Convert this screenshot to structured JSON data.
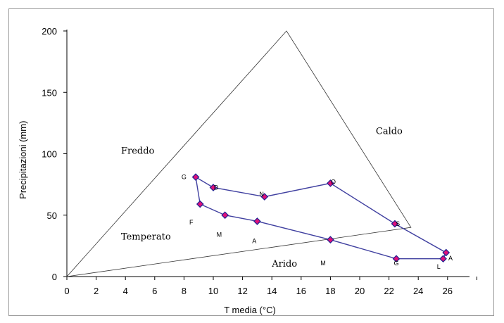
{
  "chart_data": {
    "type": "scatter",
    "xlabel": "T  media (°C)",
    "ylabel": "Precipitazioni (mm)",
    "xlim": [
      0,
      27.5
    ],
    "ylim": [
      0,
      200
    ],
    "xticks": [
      0,
      2,
      4,
      6,
      8,
      10,
      12,
      14,
      16,
      18,
      20,
      22,
      24,
      26
    ],
    "yticks": [
      0,
      50,
      100,
      150,
      200
    ],
    "grid": false,
    "series": [
      {
        "points": [
          {
            "x": 8.8,
            "y": 81,
            "label": "G"
          },
          {
            "x": 9.1,
            "y": 59,
            "label": "F"
          },
          {
            "x": 10.8,
            "y": 50,
            "label": "M"
          },
          {
            "x": 13.0,
            "y": 45,
            "label": "A"
          },
          {
            "x": 18.0,
            "y": 30,
            "label": "M"
          },
          {
            "x": 22.5,
            "y": 14.5,
            "label": "G"
          },
          {
            "x": 25.7,
            "y": 14.5,
            "label": "L"
          },
          {
            "x": 25.9,
            "y": 19.5,
            "label": "A"
          },
          {
            "x": 22.4,
            "y": 43,
            "label": "S"
          },
          {
            "x": 18.0,
            "y": 76,
            "label": "O"
          },
          {
            "x": 13.5,
            "y": 65,
            "label": "N"
          },
          {
            "x": 10.0,
            "y": 72.5,
            "label": "D"
          }
        ],
        "closed": true
      }
    ],
    "envelope": {
      "triangle": [
        {
          "x": 0,
          "y": 0
        },
        {
          "x": 15,
          "y": 200
        },
        {
          "x": 23.5,
          "y": 40
        }
      ],
      "climate_regions": [
        "Freddo",
        "Caldo",
        "Temperato",
        "Arido"
      ]
    },
    "region_positions": [
      {
        "x": 3.7,
        "y": 100
      },
      {
        "x": 21.1,
        "y": 116
      },
      {
        "x": 3.7,
        "y": 30
      },
      {
        "x": 14.0,
        "y": 8
      }
    ],
    "month_label_positions": [
      {
        "x": 8.0,
        "y": 81
      },
      {
        "x": 8.5,
        "y": 44
      },
      {
        "x": 10.4,
        "y": 34
      },
      {
        "x": 12.8,
        "y": 29
      },
      {
        "x": 17.5,
        "y": 11
      },
      {
        "x": 22.5,
        "y": 11
      },
      {
        "x": 25.4,
        "y": 8
      },
      {
        "x": 26.2,
        "y": 15
      },
      {
        "x": 22.6,
        "y": 43
      },
      {
        "x": 18.2,
        "y": 77
      },
      {
        "x": 13.3,
        "y": 67
      },
      {
        "x": 10.2,
        "y": 72.5
      }
    ],
    "colors": {
      "line": "#4040a0",
      "marker": "#e0107a",
      "marker_edge": "#202090",
      "axis": "#000000"
    }
  }
}
